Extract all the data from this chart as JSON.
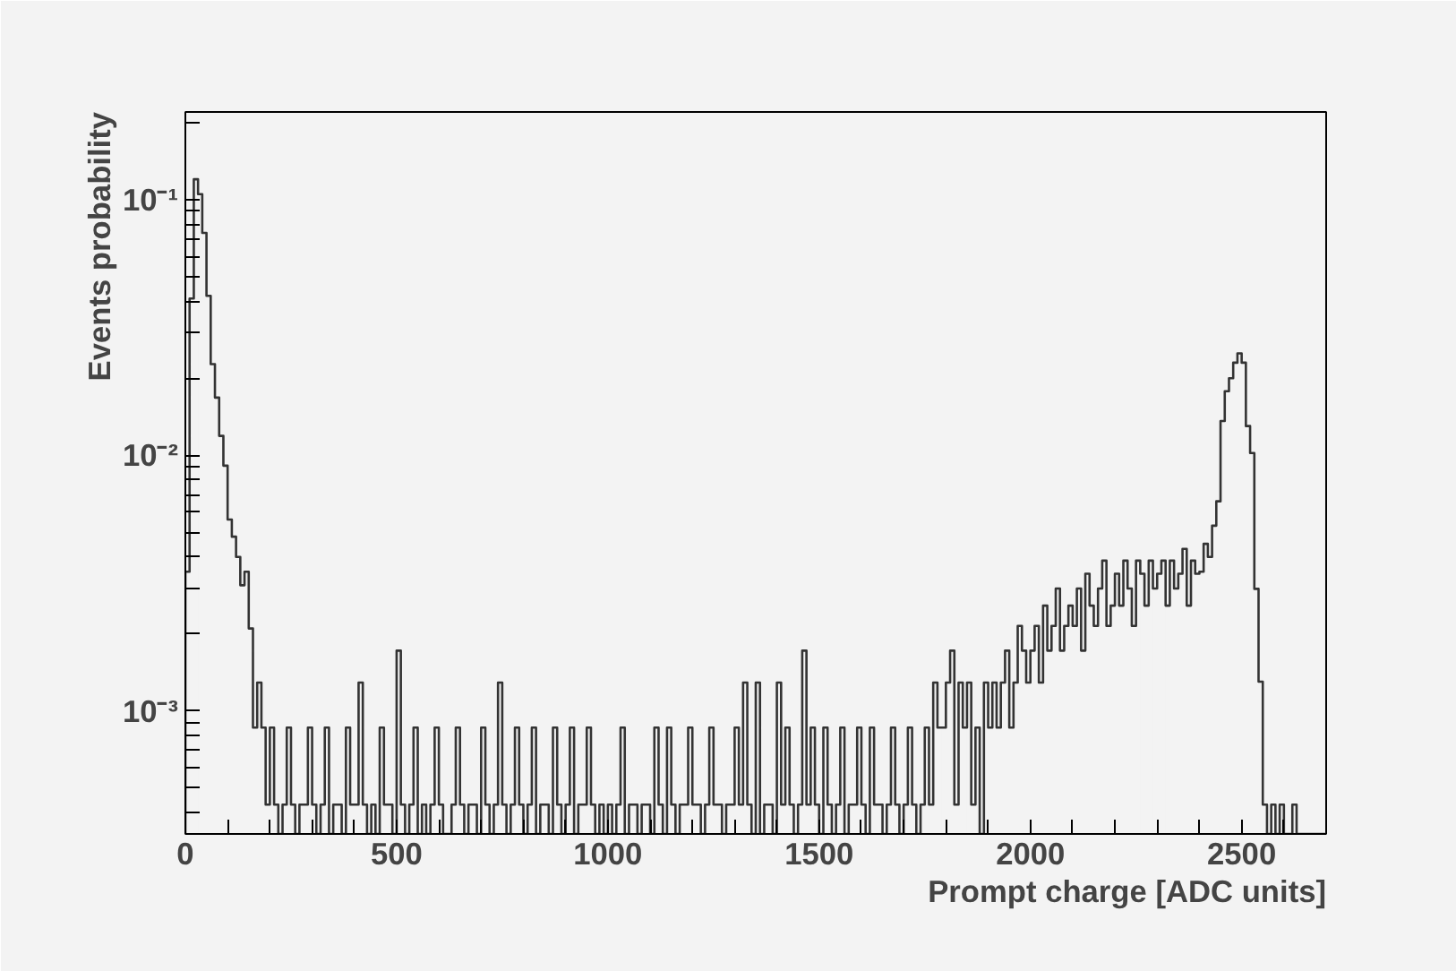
{
  "chart_data": {
    "type": "histogram",
    "xlabel": "Prompt charge [ADC units]",
    "ylabel": "Events probability",
    "color": "#333333",
    "log": true,
    "grid": false,
    "xlim": [
      0,
      2700
    ],
    "ylim": [
      0.00033,
      0.22
    ],
    "xticks": [
      0,
      {
        "value": 100,
        "label": null
      },
      {
        "value": 200,
        "label": null
      },
      {
        "value": 300,
        "label": null
      },
      {
        "value": 400,
        "label": null
      },
      500,
      {
        "value": 600,
        "label": null
      },
      {
        "value": 700,
        "label": null
      },
      {
        "value": 800,
        "label": null
      },
      {
        "value": 900,
        "label": null
      },
      1000,
      {
        "value": 1100,
        "label": null
      },
      {
        "value": 1200,
        "label": null
      },
      {
        "value": 1300,
        "label": null
      },
      {
        "value": 1400,
        "label": null
      },
      1500,
      {
        "value": 1600,
        "label": null
      },
      {
        "value": 1700,
        "label": null
      },
      {
        "value": 1800,
        "label": null
      },
      {
        "value": 1900,
        "label": null
      },
      2000,
      {
        "value": 2100,
        "label": null
      },
      {
        "value": 2200,
        "label": null
      },
      {
        "value": 2300,
        "label": null
      },
      {
        "value": 2400,
        "label": null
      },
      2500,
      {
        "value": 2600,
        "label": null
      }
    ],
    "yticks": [
      {
        "value": 0.0004,
        "label": null
      },
      {
        "value": 0.0005,
        "label": null
      },
      {
        "value": 0.0006,
        "label": null
      },
      {
        "value": 0.0007,
        "label": null
      },
      {
        "value": 0.0008,
        "label": null
      },
      {
        "value": 0.0009,
        "label": null
      },
      {
        "value": 0.001,
        "label": "10⁻³"
      },
      {
        "value": 0.002,
        "label": null
      },
      {
        "value": 0.003,
        "label": null
      },
      {
        "value": 0.004,
        "label": null
      },
      {
        "value": 0.005,
        "label": null
      },
      {
        "value": 0.006,
        "label": null
      },
      {
        "value": 0.007,
        "label": null
      },
      {
        "value": 0.008,
        "label": null
      },
      {
        "value": 0.009,
        "label": null
      },
      {
        "value": 0.01,
        "label": "10⁻²"
      },
      {
        "value": 0.02,
        "label": null
      },
      {
        "value": 0.03,
        "label": null
      },
      {
        "value": 0.04,
        "label": null
      },
      {
        "value": 0.05,
        "label": null
      },
      {
        "value": 0.06,
        "label": null
      },
      {
        "value": 0.07,
        "label": null
      },
      {
        "value": 0.08,
        "label": null
      },
      {
        "value": 0.09,
        "label": null
      },
      {
        "value": 0.1,
        "label": "10⁻¹"
      },
      {
        "value": 0.2,
        "label": null
      }
    ],
    "bins": [
      0,
      10,
      20,
      30,
      40,
      50,
      60,
      70,
      80,
      90,
      100,
      110,
      120,
      130,
      140,
      150,
      160,
      170,
      180,
      190,
      200,
      210,
      220,
      230,
      240,
      250,
      260,
      270,
      280,
      290,
      300,
      310,
      320,
      330,
      340,
      350,
      360,
      370,
      380,
      390,
      400,
      410,
      420,
      430,
      440,
      450,
      460,
      470,
      480,
      490,
      500,
      510,
      520,
      530,
      540,
      550,
      560,
      570,
      580,
      590,
      600,
      610,
      620,
      630,
      640,
      650,
      660,
      670,
      680,
      690,
      700,
      710,
      720,
      730,
      740,
      750,
      760,
      770,
      780,
      790,
      800,
      810,
      820,
      830,
      840,
      850,
      860,
      870,
      880,
      890,
      900,
      910,
      920,
      930,
      940,
      950,
      960,
      970,
      980,
      990,
      1000,
      1010,
      1020,
      1030,
      1040,
      1050,
      1060,
      1070,
      1080,
      1090,
      1100,
      1110,
      1120,
      1130,
      1140,
      1150,
      1160,
      1170,
      1180,
      1190,
      1200,
      1210,
      1220,
      1230,
      1240,
      1250,
      1260,
      1270,
      1280,
      1290,
      1300,
      1310,
      1320,
      1330,
      1340,
      1350,
      1360,
      1370,
      1380,
      1390,
      1400,
      1410,
      1420,
      1430,
      1440,
      1450,
      1460,
      1470,
      1480,
      1490,
      1500,
      1510,
      1520,
      1530,
      1540,
      1550,
      1560,
      1570,
      1580,
      1590,
      1600,
      1610,
      1620,
      1630,
      1640,
      1650,
      1660,
      1670,
      1680,
      1690,
      1700,
      1710,
      1720,
      1730,
      1740,
      1750,
      1760,
      1770,
      1780,
      1790,
      1800,
      1810,
      1820,
      1830,
      1840,
      1850,
      1860,
      1870,
      1880,
      1890,
      1900,
      1910,
      1920,
      1930,
      1940,
      1950,
      1960,
      1970,
      1980,
      1990,
      2000,
      2010,
      2020,
      2030,
      2040,
      2050,
      2060,
      2070,
      2080,
      2090,
      2100,
      2110,
      2120,
      2130,
      2140,
      2150,
      2160,
      2170,
      2180,
      2190,
      2200,
      2210,
      2220,
      2230,
      2240,
      2250,
      2260,
      2270,
      2280,
      2290,
      2300,
      2310,
      2320,
      2330,
      2340,
      2350,
      2360,
      2370,
      2380,
      2390,
      2400,
      2410,
      2420,
      2430,
      2440,
      2450,
      2460,
      2470,
      2480,
      2490,
      2500,
      2510,
      2520,
      2530,
      2540,
      2550,
      2560,
      2570,
      2580,
      2590,
      2600,
      2610,
      2620,
      2630,
      2640,
      2650,
      2660,
      2670,
      2680,
      2690,
      2700
    ],
    "values": [
      0.0035,
      0.041,
      0.12,
      0.105,
      0.074,
      0.042,
      0.0227,
      0.0168,
      0.0119,
      0.0091,
      0.0056,
      0.0048,
      0.004,
      0.0031,
      0.0035,
      0.0021,
      0.00086,
      0.00129,
      0.00086,
      0.00043,
      0.00086,
      0.00043,
      null,
      0.00043,
      0.00086,
      0.00043,
      null,
      0.00043,
      0.00043,
      0.00086,
      0.00043,
      null,
      0.00043,
      0.00086,
      null,
      0.00043,
      0.00043,
      null,
      0.00086,
      0.00043,
      0.00043,
      0.00129,
      0.00043,
      null,
      0.00043,
      null,
      0.00086,
      0.00043,
      0.00043,
      null,
      0.00172,
      0.00043,
      null,
      0.00043,
      0.00086,
      null,
      0.00043,
      null,
      0.00043,
      0.00086,
      0.00043,
      null,
      null,
      0.00043,
      0.00086,
      0.00043,
      null,
      0.00043,
      0.00043,
      null,
      0.00086,
      0.00043,
      null,
      0.00043,
      0.00129,
      0.00043,
      null,
      0.00043,
      0.00086,
      0.00043,
      null,
      0.00043,
      0.00086,
      null,
      0.00043,
      0.00043,
      null,
      0.00086,
      0.00043,
      null,
      0.00043,
      0.00086,
      null,
      0.00043,
      0.00043,
      0.00086,
      0.00043,
      null,
      0.00043,
      null,
      0.00043,
      null,
      0.00043,
      0.00086,
      null,
      0.00043,
      0.00043,
      null,
      0.00043,
      0.00043,
      null,
      0.00086,
      0.00043,
      null,
      0.00086,
      0.00043,
      null,
      0.00043,
      0.00043,
      0.00086,
      0.00043,
      0.00043,
      null,
      0.00043,
      0.00086,
      0.00043,
      0.00043,
      null,
      0.00043,
      0.00043,
      0.00086,
      0.00043,
      0.00129,
      0.00043,
      null,
      0.00129,
      null,
      0.00043,
      0.00043,
      null,
      0.00129,
      0.00043,
      0.00086,
      0.00043,
      null,
      0.00043,
      0.00172,
      0.00043,
      0.00086,
      0.00043,
      null,
      0.00086,
      0.00043,
      null,
      0.00043,
      0.00086,
      null,
      0.00043,
      0.00043,
      0.00086,
      0.00043,
      null,
      0.00086,
      0.00043,
      0.00043,
      null,
      0.00043,
      0.00086,
      0.00043,
      null,
      0.00043,
      0.00086,
      0.00043,
      null,
      0.00043,
      0.00086,
      0.00043,
      0.00129,
      0.00086,
      0.00086,
      0.00129,
      0.00172,
      0.00043,
      0.00129,
      0.00086,
      0.00129,
      0.00043,
      0.00086,
      null,
      0.00129,
      0.00086,
      0.00129,
      0.00086,
      0.00129,
      0.00172,
      0.00086,
      0.00129,
      0.00215,
      0.00172,
      0.00129,
      0.00172,
      0.00215,
      0.00129,
      0.00258,
      0.00172,
      0.00215,
      0.00301,
      0.00172,
      0.00215,
      0.00258,
      0.00215,
      0.00301,
      0.00172,
      0.00344,
      0.00258,
      0.00215,
      0.00301,
      0.00387,
      0.00215,
      0.00258,
      0.00344,
      0.00258,
      0.00387,
      0.00301,
      0.00215,
      0.00387,
      0.00344,
      0.00258,
      0.00387,
      0.00301,
      0.00344,
      0.00387,
      0.00258,
      0.00387,
      0.00301,
      0.00344,
      0.0043,
      0.00258,
      0.00387,
      0.00344,
      0.0035,
      0.0045,
      0.004,
      0.0053,
      0.0066,
      0.0136,
      0.0178,
      0.02,
      0.023,
      0.025,
      0.023,
      0.013,
      0.0102,
      0.003,
      0.0013,
      0.00043,
      null,
      0.00043,
      null,
      0.00043,
      null,
      null,
      0.00043,
      null,
      null,
      null,
      null,
      null,
      null,
      null
    ]
  }
}
